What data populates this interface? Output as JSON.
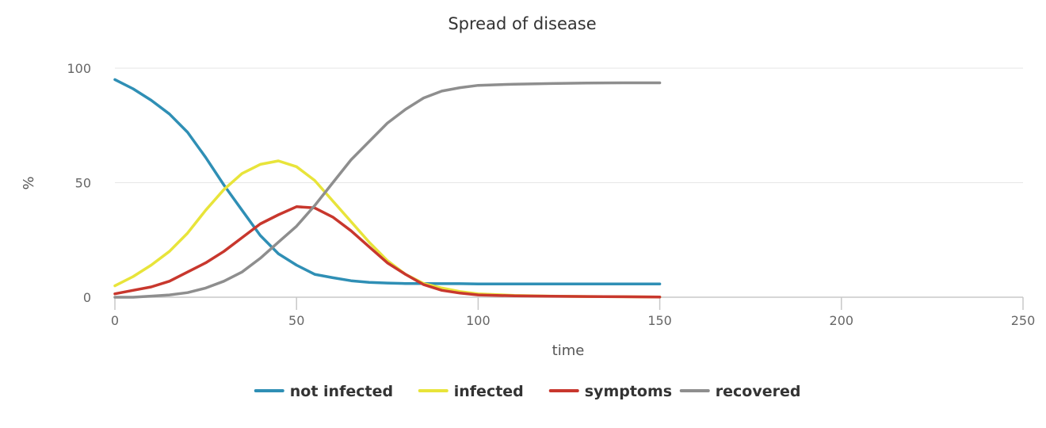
{
  "chart_data": {
    "type": "line",
    "title": "Spread of disease",
    "xlabel": "time",
    "ylabel": "%",
    "xlim": [
      0,
      250
    ],
    "ylim": [
      0,
      100
    ],
    "xticks": [
      0,
      50,
      100,
      150,
      200,
      250
    ],
    "yticks": [
      0,
      50,
      100
    ],
    "grid": true,
    "legend_position": "bottom",
    "x": [
      0,
      5,
      10,
      15,
      20,
      25,
      30,
      35,
      40,
      45,
      50,
      55,
      60,
      65,
      70,
      75,
      80,
      85,
      90,
      95,
      100,
      110,
      120,
      130,
      140,
      150
    ],
    "series": [
      {
        "name": "not infected",
        "color": "#2f8fb5",
        "values": [
          95,
          91,
          86,
          80,
          72,
          61,
          49,
          38,
          27,
          19,
          14,
          10,
          8.5,
          7.2,
          6.5,
          6.2,
          6.0,
          6.0,
          5.9,
          5.9,
          5.8,
          5.8,
          5.8,
          5.8,
          5.8,
          5.8
        ]
      },
      {
        "name": "infected",
        "color": "#e8e43a",
        "values": [
          5,
          9,
          14,
          20,
          28,
          38,
          47,
          54,
          58,
          59.5,
          57,
          51,
          42,
          33,
          24,
          16,
          10,
          6,
          4,
          2.5,
          1.5,
          0.8,
          0.5,
          0.3,
          0.2,
          0.1
        ]
      },
      {
        "name": "symptoms",
        "color": "#c8372d",
        "values": [
          1.5,
          3,
          4.5,
          7,
          11,
          15,
          20,
          26,
          32,
          36,
          39.5,
          39,
          35,
          29,
          22,
          15,
          10,
          5.5,
          3,
          1.8,
          1.0,
          0.6,
          0.4,
          0.3,
          0.2,
          0.1
        ]
      },
      {
        "name": "recovered",
        "color": "#8e8e8e",
        "values": [
          0,
          0,
          0.5,
          1,
          2,
          4,
          7,
          11,
          17,
          24,
          31,
          40,
          50,
          60,
          68,
          76,
          82,
          87,
          90,
          91.5,
          92.5,
          93,
          93.3,
          93.5,
          93.6,
          93.6
        ]
      }
    ]
  }
}
